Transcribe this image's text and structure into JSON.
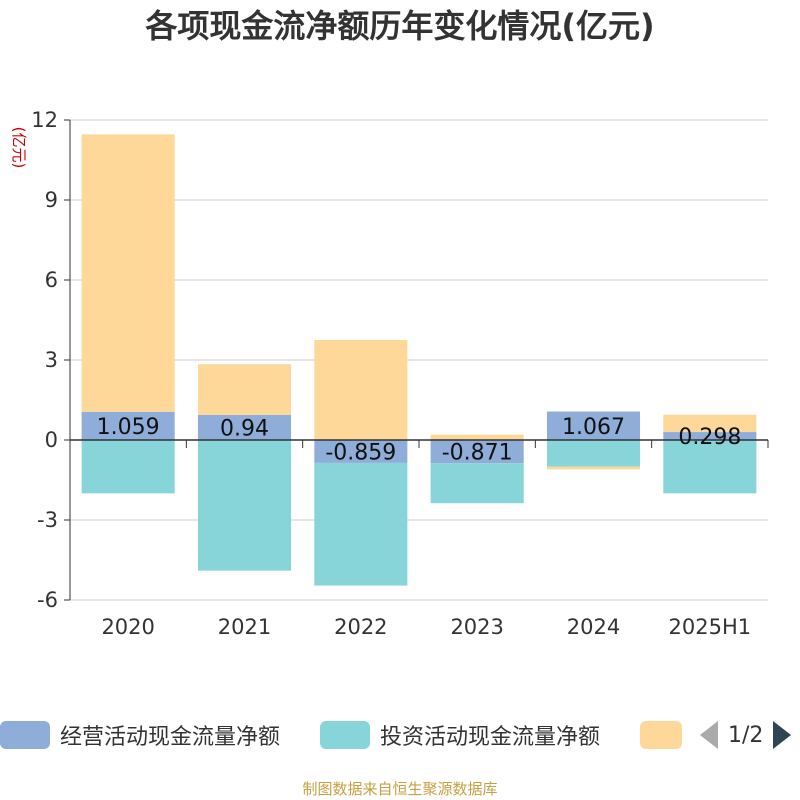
{
  "title": "各项现金流净额历年变化情况(亿元)",
  "footer": "制图数据来自恒生聚源数据库",
  "colors": {
    "operating": "#8fadd9",
    "investing": "#87d5d8",
    "financing": "#fdd898",
    "axis": "#333333",
    "grid": "#cccccc",
    "ylabel": "#cc0000"
  },
  "legend": {
    "items": [
      {
        "label": "经营活动现金流量净额",
        "color": "#8fadd9"
      },
      {
        "label": "投资活动现金流量净额",
        "color": "#87d5d8"
      },
      {
        "label": "",
        "color": "#fdd898"
      }
    ],
    "pager_text": "1/2"
  },
  "chart_data": {
    "type": "bar",
    "stacked": true,
    "categories": [
      "2020",
      "2021",
      "2022",
      "2023",
      "2024",
      "2025H1"
    ],
    "series": [
      {
        "name": "经营活动现金流量净额",
        "values": [
          1.059,
          0.94,
          -0.859,
          -0.871,
          1.067,
          0.298
        ],
        "labels": [
          "1.059",
          "0.94",
          "-0.859",
          "-0.871",
          "1.067",
          "0.298"
        ]
      },
      {
        "name": "投资活动现金流量净额",
        "values": [
          -2.0,
          -4.9,
          -4.6,
          -1.5,
          -1.0,
          -2.0
        ]
      },
      {
        "values": [
          10.4,
          1.9,
          3.75,
          0.2,
          -0.1,
          0.65
        ]
      }
    ],
    "ylabel": "(亿元)",
    "ylim": [
      -6,
      12
    ],
    "yticks": [
      -6,
      -3,
      0,
      3,
      6,
      9,
      12
    ],
    "grid": true,
    "legend_position": "bottom"
  }
}
